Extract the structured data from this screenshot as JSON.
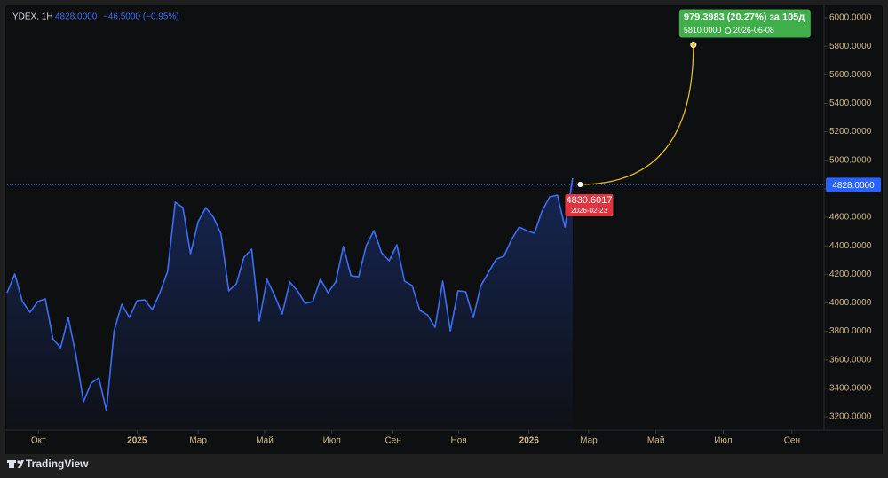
{
  "chart_data": {
    "type": "line",
    "symbol": "YDEX, 1H",
    "last": "4828.0000",
    "change": "−46.5000 (−0.95%)",
    "brand": "TradingView",
    "series": [
      {
        "name": "YDEX",
        "color": "#3d6ef5",
        "x": [
          0,
          1,
          2,
          3,
          4,
          5,
          6,
          7,
          8,
          9,
          10,
          11,
          12,
          13,
          14,
          15,
          16,
          17,
          18,
          19,
          20,
          21,
          22,
          23,
          24,
          25,
          26,
          27,
          28,
          29,
          30,
          31,
          32,
          33,
          34,
          35,
          36,
          37,
          38,
          39,
          40,
          41,
          42,
          43,
          44,
          45,
          46,
          47,
          48,
          49,
          50,
          51,
          52,
          53,
          54,
          55,
          56,
          57,
          58,
          59,
          60,
          61,
          62,
          63,
          64,
          65,
          66,
          67,
          68,
          69,
          70,
          71,
          72,
          73,
          74
        ],
        "values": [
          4071,
          4202,
          4009,
          3934,
          4009,
          4028,
          3747,
          3685,
          3897,
          3635,
          3306,
          3436,
          3474,
          3243,
          3803,
          3990,
          3897,
          4015,
          4021,
          3953,
          4071,
          4220,
          4706,
          4668,
          4345,
          4569,
          4668,
          4600,
          4482,
          4084,
          4133,
          4320,
          4376,
          3872,
          4165,
          4053,
          3922,
          4146,
          4084,
          3996,
          4009,
          4165,
          4071,
          4146,
          4395,
          4189,
          4183,
          4401,
          4507,
          4351,
          4295,
          4407,
          4152,
          4121,
          3947,
          3915,
          3828,
          4152,
          3803,
          4084,
          4078,
          3897,
          4121,
          4214,
          4307,
          4326,
          4444,
          4531,
          4507,
          4488,
          4644,
          4743,
          4755,
          4531,
          4874
        ]
      }
    ],
    "last_price": {
      "value": 4828,
      "label": "4828.0000"
    },
    "forecast": {
      "start_x": 75,
      "start_value": 4830.6017,
      "start_date": "2026-02-23",
      "end_x": 89.8,
      "end_value": 5810,
      "end_value_label": "5810.0000",
      "end_date": "2026-06-08",
      "change_label": "979.3983 (20.27%) за 105д",
      "color": "#f0c419"
    },
    "xlim": [
      0,
      106.9
    ],
    "xticks": [
      {
        "value": 4.1,
        "label": "Окт"
      },
      {
        "value": 17,
        "label": "2025"
      },
      {
        "value": 25,
        "label": "Мар"
      },
      {
        "value": 33.7,
        "label": "Май"
      },
      {
        "value": 42.5,
        "label": "Июл"
      },
      {
        "value": 50.5,
        "label": "Сен"
      },
      {
        "value": 59.1,
        "label": "Ноя"
      },
      {
        "value": 68.3,
        "label": "2026"
      },
      {
        "value": 76.1,
        "label": "Мар"
      },
      {
        "value": 84.9,
        "label": "Май"
      },
      {
        "value": 93.7,
        "label": "Июл"
      },
      {
        "value": 102.7,
        "label": "Сен"
      }
    ],
    "ylim": [
      3106.7,
      6074.7
    ],
    "yticks": [
      {
        "value": 3200,
        "label": "3200.0000"
      },
      {
        "value": 3400,
        "label": "3400.0000"
      },
      {
        "value": 3600,
        "label": "3600.0000"
      },
      {
        "value": 3800,
        "label": "3800.0000"
      },
      {
        "value": 4000,
        "label": "4000.0000"
      },
      {
        "value": 4200,
        "label": "4200.0000"
      },
      {
        "value": 4400,
        "label": "4400.0000"
      },
      {
        "value": 4600,
        "label": "4600.0000"
      },
      {
        "value": 4800,
        "label": "4800.0000"
      },
      {
        "value": 5000,
        "label": "5000.0000"
      },
      {
        "value": 5200,
        "label": "5200.0000"
      },
      {
        "value": 5400,
        "label": "5400.0000"
      },
      {
        "value": 5600,
        "label": "5600.0000"
      },
      {
        "value": 5800,
        "label": "5800.0000"
      },
      {
        "value": 6000,
        "label": "6000.0000"
      }
    ]
  }
}
